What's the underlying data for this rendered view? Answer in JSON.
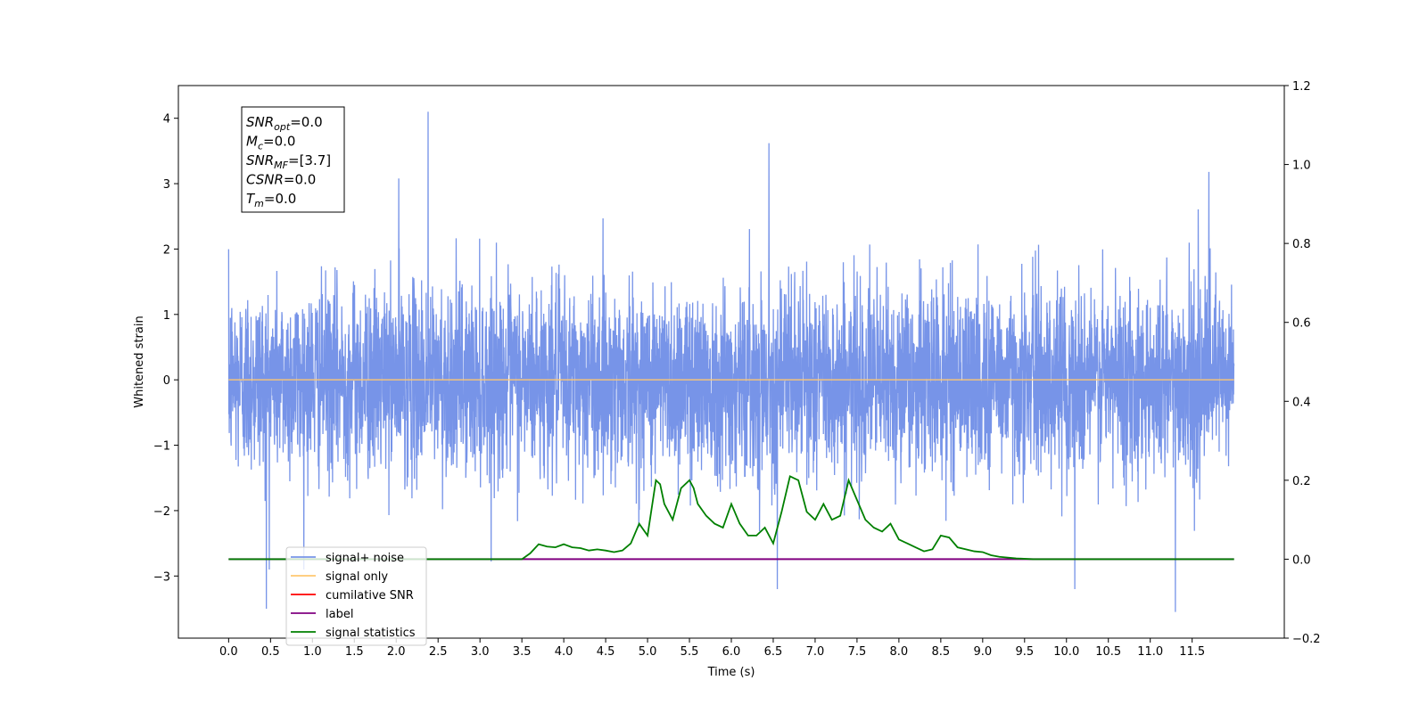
{
  "chart_data": {
    "type": "line",
    "xlabel": "Time (s)",
    "ylabel": "Whitened strain",
    "xlim": [
      -0.6,
      12.6
    ],
    "ylim": [
      -3.95,
      4.5
    ],
    "y2lim": [
      -0.2,
      1.2
    ],
    "x_ticks": [
      0.0,
      0.5,
      1.0,
      1.5,
      2.0,
      2.5,
      3.0,
      3.5,
      4.0,
      4.5,
      5.0,
      5.5,
      6.0,
      6.5,
      7.0,
      7.5,
      8.0,
      8.5,
      9.0,
      9.5,
      10.0,
      10.5,
      11.0,
      11.5
    ],
    "x_tick_labels": [
      "0.0",
      "0.5",
      "1.0",
      "1.5",
      "2.0",
      "2.5",
      "3.0",
      "3.5",
      "4.0",
      "4.5",
      "5.0",
      "5.5",
      "6.0",
      "6.5",
      "7.0",
      "7.5",
      "8.0",
      "8.5",
      "9.0",
      "9.5",
      "10.0",
      "10.5",
      "11.0",
      "11.5"
    ],
    "y_ticks": [
      -3,
      -2,
      -1,
      0,
      1,
      2,
      3,
      4
    ],
    "y_tick_labels": [
      "−3",
      "−2",
      "−1",
      "0",
      "1",
      "2",
      "3",
      "4"
    ],
    "y2_ticks": [
      -0.2,
      0.0,
      0.2,
      0.4,
      0.6,
      0.8,
      1.0,
      1.2
    ],
    "y2_tick_labels": [
      "−0.2",
      "0.0",
      "0.2",
      "0.4",
      "0.6",
      "0.8",
      "1.0",
      "1.2"
    ],
    "grid": false,
    "legend_position": "lower-left",
    "colors": {
      "signal_noise": "#7794e8",
      "signal_only": "#ffc870",
      "cumulative_snr": "#ff0000",
      "label": "#800080",
      "signal_statistics": "#008000"
    },
    "series": [
      {
        "name": "signal+ noise",
        "axis": "left",
        "description": "whitened noise, approx. unit variance, 0 to 12 s",
        "x_range": [
          0.0,
          12.0
        ],
        "peaks": [
          {
            "x": 2.38,
            "y": 4.1
          },
          {
            "x": 6.45,
            "y": 3.62
          },
          {
            "x": 11.7,
            "y": 3.18
          },
          {
            "x": 2.03,
            "y": 3.08
          },
          {
            "x": 0.45,
            "y": -3.5
          },
          {
            "x": 11.3,
            "y": -3.55
          },
          {
            "x": 6.55,
            "y": -3.2
          },
          {
            "x": 10.1,
            "y": -3.2
          }
        ]
      },
      {
        "name": "signal only",
        "axis": "left",
        "x": [
          0.0,
          12.0
        ],
        "y": [
          0.0,
          0.0
        ]
      },
      {
        "name": "cumilative SNR",
        "axis": "right",
        "x": [],
        "y": []
      },
      {
        "name": "label",
        "axis": "right",
        "x": [
          0.0,
          12.0
        ],
        "y": [
          0.0,
          0.0
        ]
      },
      {
        "name": "signal statistics",
        "axis": "right",
        "x": [
          0.0,
          3.5,
          3.6,
          3.7,
          3.8,
          3.9,
          4.0,
          4.1,
          4.2,
          4.3,
          4.4,
          4.5,
          4.6,
          4.7,
          4.8,
          4.9,
          5.0,
          5.1,
          5.15,
          5.2,
          5.3,
          5.4,
          5.5,
          5.55,
          5.6,
          5.7,
          5.8,
          5.9,
          6.0,
          6.1,
          6.2,
          6.3,
          6.4,
          6.5,
          6.6,
          6.7,
          6.8,
          6.9,
          7.0,
          7.1,
          7.2,
          7.3,
          7.4,
          7.5,
          7.6,
          7.7,
          7.8,
          7.9,
          8.0,
          8.1,
          8.2,
          8.3,
          8.4,
          8.5,
          8.6,
          8.7,
          8.8,
          8.9,
          9.0,
          9.1,
          9.2,
          9.3,
          9.4,
          9.6,
          10.0,
          12.0
        ],
        "y": [
          0.0,
          0.0,
          0.015,
          0.038,
          0.032,
          0.03,
          0.038,
          0.03,
          0.028,
          0.022,
          0.025,
          0.022,
          0.018,
          0.022,
          0.04,
          0.09,
          0.06,
          0.2,
          0.19,
          0.14,
          0.1,
          0.18,
          0.2,
          0.18,
          0.14,
          0.11,
          0.09,
          0.08,
          0.14,
          0.09,
          0.06,
          0.06,
          0.08,
          0.04,
          0.12,
          0.21,
          0.2,
          0.12,
          0.1,
          0.14,
          0.1,
          0.11,
          0.2,
          0.15,
          0.1,
          0.08,
          0.07,
          0.09,
          0.05,
          0.04,
          0.03,
          0.02,
          0.025,
          0.06,
          0.055,
          0.03,
          0.025,
          0.02,
          0.018,
          0.01,
          0.006,
          0.004,
          0.002,
          0.0,
          0.0,
          0.0
        ]
      }
    ],
    "annotation": [
      {
        "var": "SNR",
        "sub": "opt",
        "value": "=0.0"
      },
      {
        "var": "M",
        "sub": "c",
        "value": "=0.0"
      },
      {
        "var": "SNR",
        "sub": "MF",
        "value": "=[3.7]"
      },
      {
        "var": "CSNR",
        "sub": "",
        "value": "=0.0"
      },
      {
        "var": "T",
        "sub": "m",
        "value": "=0.0"
      }
    ]
  }
}
